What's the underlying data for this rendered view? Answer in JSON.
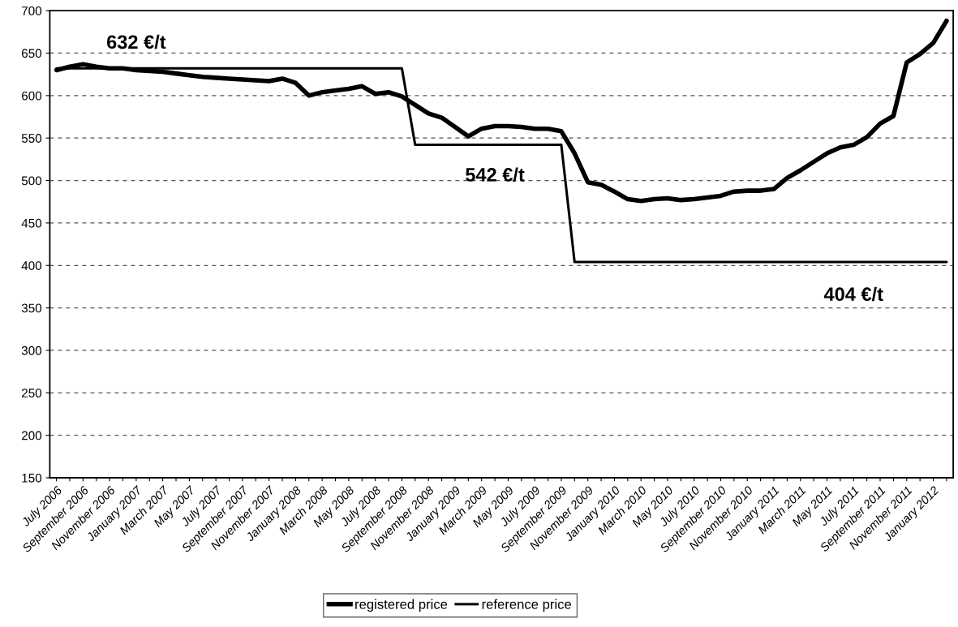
{
  "chart_data": {
    "type": "line",
    "categories": [
      "July 2006",
      null,
      "September 2006",
      null,
      "November 2006",
      null,
      "January 2007",
      null,
      "March 2007",
      null,
      "May 2007",
      null,
      "July 2007",
      null,
      "September 2007",
      null,
      "November 2007",
      null,
      "January 2008",
      null,
      "March 2008",
      null,
      "May 2008",
      null,
      "July 2008",
      null,
      "September 2008",
      null,
      "November 2008",
      null,
      "January 2009",
      null,
      "March 2009",
      null,
      "May 2009",
      null,
      "July 2009",
      null,
      "September 2009",
      null,
      "November 2009",
      null,
      "January 2010",
      null,
      "March 2010",
      null,
      "May 2010",
      null,
      "July 2010",
      null,
      "September 2010",
      null,
      "November 2010",
      null,
      "January 2011",
      null,
      "March 2011",
      null,
      "May 2011",
      null,
      "July 2011",
      null,
      "September 2011",
      null,
      "November 2011",
      null,
      "January 2012",
      null
    ],
    "series": [
      {
        "name": "registered price",
        "color": "#000000",
        "values": [
          630,
          634,
          637,
          634,
          632,
          632,
          630,
          629,
          628,
          626,
          624,
          622,
          621,
          620,
          619,
          618,
          617,
          620,
          615,
          600,
          604,
          606,
          608,
          611,
          602,
          604,
          599,
          589,
          579,
          574,
          563,
          552,
          561,
          564,
          564,
          563,
          561,
          561,
          558,
          532,
          498,
          495,
          487,
          478,
          476,
          478,
          479,
          477,
          478,
          480,
          482,
          487,
          488,
          488,
          490,
          503,
          512,
          522,
          532,
          539,
          542,
          551,
          567,
          576,
          639,
          649,
          662,
          688
        ]
      },
      {
        "name": "reference price",
        "color": "#000000",
        "values": [
          632,
          632,
          632,
          632,
          632,
          632,
          632,
          632,
          632,
          632,
          632,
          632,
          632,
          632,
          632,
          632,
          632,
          632,
          632,
          632,
          632,
          632,
          632,
          632,
          632,
          632,
          632,
          542,
          542,
          542,
          542,
          542,
          542,
          542,
          542,
          542,
          542,
          542,
          542,
          404,
          404,
          404,
          404,
          404,
          404,
          404,
          404,
          404,
          404,
          404,
          404,
          404,
          404,
          404,
          404,
          404,
          404,
          404,
          404,
          404,
          404,
          404,
          404,
          404,
          404,
          404,
          404,
          404
        ]
      }
    ],
    "annotations": [
      {
        "text": "632 €/t",
        "y": 632
      },
      {
        "text": "542 €/t",
        "y": 542
      },
      {
        "text": "404 €/t",
        "y": 404
      }
    ],
    "ylim": [
      150,
      700
    ],
    "yticks": [
      150,
      200,
      250,
      300,
      350,
      400,
      450,
      500,
      550,
      600,
      650,
      700
    ],
    "grid": "y",
    "legend": "bottom",
    "marker": "none",
    "line_style": "solid"
  }
}
